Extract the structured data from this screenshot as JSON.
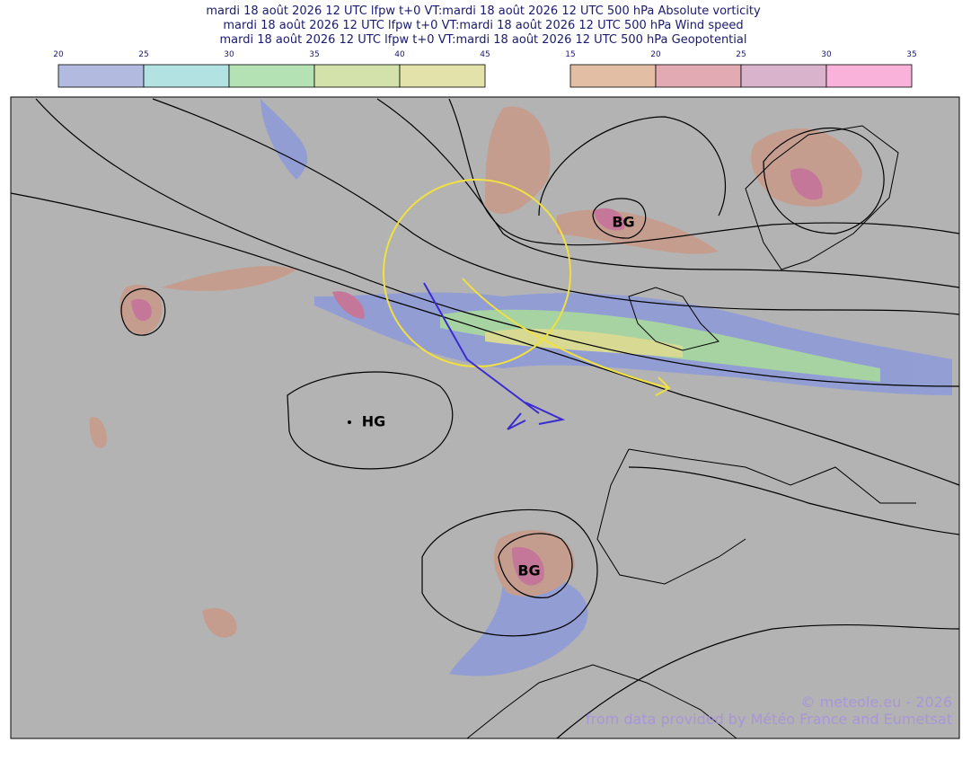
{
  "header": {
    "lines": [
      "mardi 18 août 2026 12 UTC lfpw t+0 VT:mardi 18 août 2026 12 UTC 500 hPa  Absolute vorticity",
      "mardi 18 août 2026 12 UTC lfpw t+0 VT:mardi 18 août 2026 12 UTC 500 hPa  Wind speed",
      "mardi 18 août 2026 12 UTC lfpw t+0 VT:mardi 18 août 2026 12 UTC 500 hPa  Geopotential"
    ]
  },
  "colorbars": [
    {
      "ticks": [
        20,
        25,
        30,
        35,
        40,
        45
      ],
      "colors": [
        "#b2badf",
        "#b2e2e2",
        "#b4e2b4",
        "#d2e2aa",
        "#e2e2aa"
      ]
    },
    {
      "ticks": [
        15,
        20,
        25,
        30,
        35
      ],
      "colors": [
        "#e2bea4",
        "#e2abb4",
        "#d9b3cb",
        "#f9b3da"
      ]
    }
  ],
  "map": {
    "labels": [
      "BG",
      "HG",
      "BG"
    ],
    "credits": [
      "© meteole.eu - 2026",
      "from data provided by Météo France and Eumetsat"
    ]
  }
}
